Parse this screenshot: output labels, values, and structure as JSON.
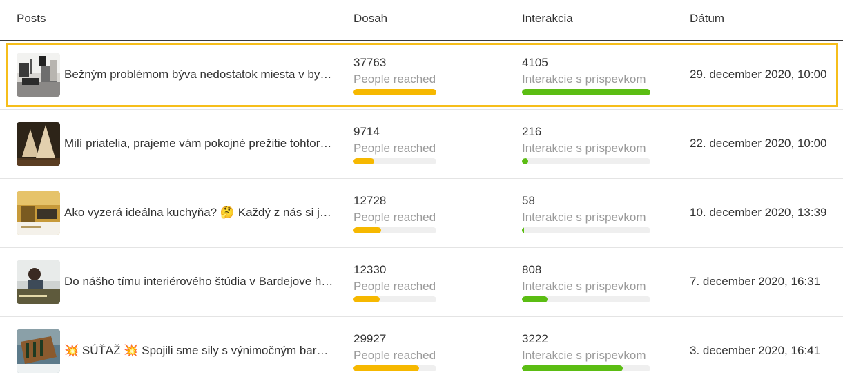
{
  "header": {
    "posts": "Posts",
    "reach": "Dosah",
    "interactions": "Interakcia",
    "date": "Dátum"
  },
  "colors": {
    "reach_bar": "#f6b800",
    "interaction_bar": "#5bbd13",
    "highlight": "#f6be1b"
  },
  "rows": [
    {
      "text": "Bežným problémom býva nedostatok miesta v by…",
      "reach": "37763",
      "reach_label": "People reached",
      "reach_fill": 1.0,
      "interactions": "4105",
      "interactions_label": "Interakcie s príspevkom",
      "interactions_fill": 1.0,
      "date": "29. december 2020, 10:00",
      "thumb_icon": "kitchen-photo"
    },
    {
      "text": "Milí priatelia, prajeme vám pokojné prežitie tohtor…",
      "reach": "9714",
      "reach_label": "People reached",
      "reach_fill": 0.25,
      "interactions": "216",
      "interactions_label": "Interakcie s príspevkom",
      "interactions_fill": 0.05,
      "date": "22. december 2020, 10:00",
      "thumb_icon": "wooden-trees-photo"
    },
    {
      "text": "Ako vyzerá ideálna kuchyňa? 🤔 Každý z nás si j…",
      "reach": "12728",
      "reach_label": "People reached",
      "reach_fill": 0.33,
      "interactions": "58",
      "interactions_label": "Interakcie s príspevkom",
      "interactions_fill": 0.015,
      "date": "10. december 2020, 13:39",
      "thumb_icon": "kitchen-interior-photo"
    },
    {
      "text": "Do nášho tímu interiérového štúdia v Bardejove h…",
      "reach": "12330",
      "reach_label": "People reached",
      "reach_fill": 0.32,
      "interactions": "808",
      "interactions_label": "Interakcie s príspevkom",
      "interactions_fill": 0.2,
      "date": "7. december 2020, 16:31",
      "thumb_icon": "person-photo"
    },
    {
      "text": "💥 SÚŤAŽ 💥 Spojili sme sily s výnimočným bar…",
      "reach": "29927",
      "reach_label": "People reached",
      "reach_fill": 0.79,
      "interactions": "3222",
      "interactions_label": "Interakcie s príspevkom",
      "interactions_fill": 0.785,
      "date": "3. december 2020, 16:41",
      "thumb_icon": "gift-box-photo"
    }
  ]
}
